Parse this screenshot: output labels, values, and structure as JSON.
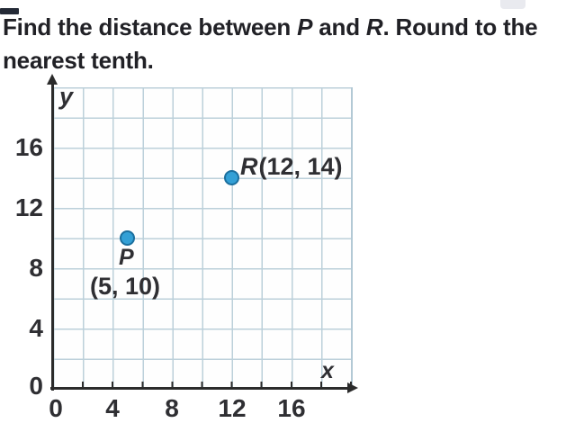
{
  "question": {
    "part1": "Find the distance between ",
    "part2": "P",
    "part3": " and ",
    "part4": "R",
    "part5": ". Round to the",
    "line2": "nearest tenth."
  },
  "chart_data": {
    "type": "scatter",
    "xlabel": "x",
    "ylabel": "y",
    "xlim": [
      0,
      20
    ],
    "ylim": [
      0,
      20
    ],
    "grid": true,
    "grid_step": 2,
    "tick_step": 4,
    "x_ticks": [
      "0",
      "4",
      "8",
      "12",
      "16"
    ],
    "y_ticks": [
      "16",
      "12",
      "8",
      "4",
      "0"
    ],
    "points": [
      {
        "name": "P",
        "x": 5,
        "y": 10,
        "label": "P",
        "coord_label": "(5, 10)"
      },
      {
        "name": "R",
        "x": 12,
        "y": 14,
        "label": "R",
        "coord_label": "(12, 14)"
      }
    ]
  },
  "colors": {
    "point_fill": "#33a0d6",
    "point_border": "#1b6f9e",
    "grid_line": "#bcd0da",
    "grid_edge": "#b3c9d5",
    "axis": "#2b2b2b",
    "title_text": "#212126",
    "label_text": "#2f2f33"
  }
}
